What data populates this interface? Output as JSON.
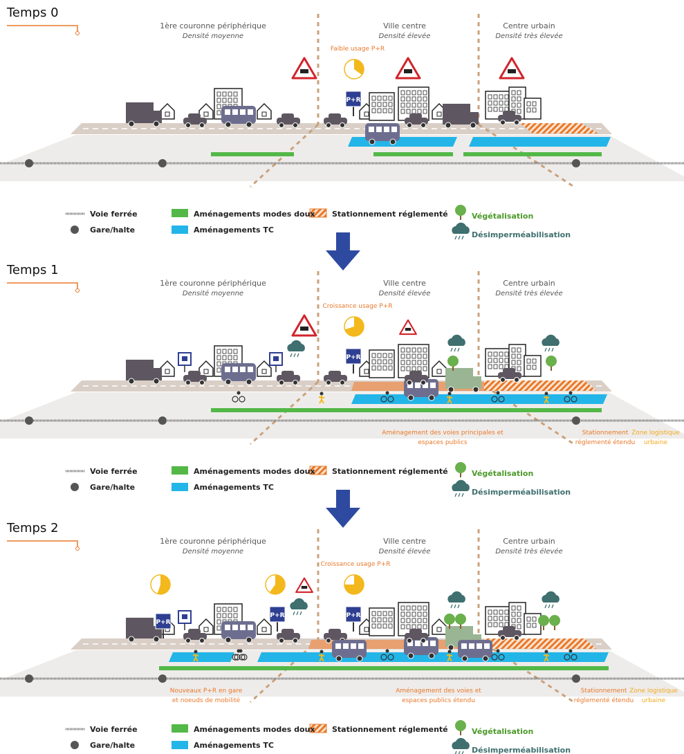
{
  "zones": [
    {
      "name": "1ère couronne périphérique",
      "density": "Densité moyenne"
    },
    {
      "name": "Ville centre",
      "density": "Densité élevée"
    },
    {
      "name": "Centre urbain",
      "density": "Densité très élevée"
    }
  ],
  "sign_label": "P+R",
  "legend": {
    "rail": "Voie ferrée",
    "station": "Gare/halte",
    "soft": "Aménagements modes doux",
    "transit": "Aménagements TC",
    "parking": "Stationnement réglementé",
    "green": "Végétalisation",
    "permeable": "Désimperméabilisation"
  },
  "panels": [
    {
      "title": "Temps 0",
      "annotations": [
        {
          "lines": [
            "Faible usage P+R"
          ]
        }
      ]
    },
    {
      "title": "Temps 1",
      "annotations": [
        {
          "lines": [
            "Croissance usage P+R"
          ]
        },
        {
          "lines": [
            "Aménagement des voies principales et",
            "espaces publics"
          ]
        },
        {
          "lines": [
            "Stationnement",
            "réglementé étendu"
          ]
        },
        {
          "lines": [
            "Zone logistique",
            "urbaine"
          ]
        }
      ]
    },
    {
      "title": "Temps 2",
      "annotations": [
        {
          "lines": [
            "Croissance usage P+R"
          ]
        },
        {
          "lines": [
            "Nouveaux P+R en gare",
            "et noeuds de mobilité"
          ]
        },
        {
          "lines": [
            "Aménagement des voies et",
            "espaces publics étendu"
          ]
        },
        {
          "lines": [
            "Stationnement",
            "réglementé étendu"
          ]
        },
        {
          "lines": [
            "Zone logistique",
            "urbaine"
          ]
        }
      ]
    }
  ]
}
